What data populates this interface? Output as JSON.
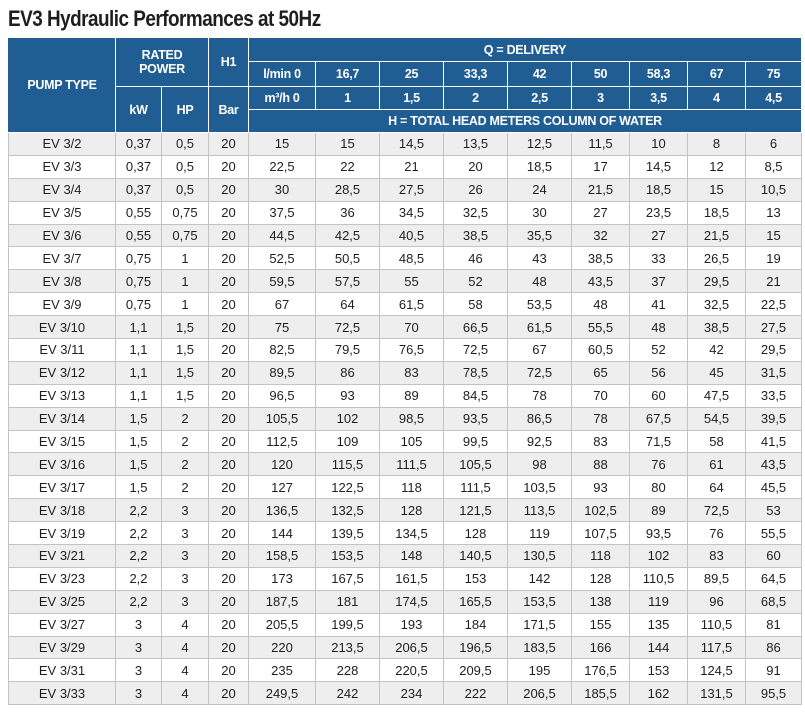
{
  "title": "EV3 Hydraulic Performances at 50Hz",
  "header": {
    "pump_type": "PUMP TYPE",
    "rated_power": "RATED POWER",
    "h1": "H1",
    "q_delivery": "Q = DELIVERY",
    "kw": "kW",
    "hp": "HP",
    "bar": "Bar",
    "lmin_label": "l/min 0",
    "m3h_label": "m³/h 0",
    "lmin_values": [
      "16,7",
      "25",
      "33,3",
      "42",
      "50",
      "58,3",
      "67",
      "75"
    ],
    "m3h_values": [
      "1",
      "1,5",
      "2",
      "2,5",
      "3",
      "3,5",
      "4",
      "4,5"
    ],
    "head_label": "H = TOTAL HEAD METERS COLUMN OF WATER"
  },
  "rows": [
    [
      "EV 3/2",
      "0,37",
      "0,5",
      "20",
      "15",
      "15",
      "14,5",
      "13,5",
      "12,5",
      "11,5",
      "10",
      "8",
      "6"
    ],
    [
      "EV 3/3",
      "0,37",
      "0,5",
      "20",
      "22,5",
      "22",
      "21",
      "20",
      "18,5",
      "17",
      "14,5",
      "12",
      "8,5"
    ],
    [
      "EV 3/4",
      "0,37",
      "0,5",
      "20",
      "30",
      "28,5",
      "27,5",
      "26",
      "24",
      "21,5",
      "18,5",
      "15",
      "10,5"
    ],
    [
      "EV 3/5",
      "0,55",
      "0,75",
      "20",
      "37,5",
      "36",
      "34,5",
      "32,5",
      "30",
      "27",
      "23,5",
      "18,5",
      "13"
    ],
    [
      "EV 3/6",
      "0,55",
      "0,75",
      "20",
      "44,5",
      "42,5",
      "40,5",
      "38,5",
      "35,5",
      "32",
      "27",
      "21,5",
      "15"
    ],
    [
      "EV 3/7",
      "0,75",
      "1",
      "20",
      "52,5",
      "50,5",
      "48,5",
      "46",
      "43",
      "38,5",
      "33",
      "26,5",
      "19"
    ],
    [
      "EV 3/8",
      "0,75",
      "1",
      "20",
      "59,5",
      "57,5",
      "55",
      "52",
      "48",
      "43,5",
      "37",
      "29,5",
      "21"
    ],
    [
      "EV 3/9",
      "0,75",
      "1",
      "20",
      "67",
      "64",
      "61,5",
      "58",
      "53,5",
      "48",
      "41",
      "32,5",
      "22,5"
    ],
    [
      "EV 3/10",
      "1,1",
      "1,5",
      "20",
      "75",
      "72,5",
      "70",
      "66,5",
      "61,5",
      "55,5",
      "48",
      "38,5",
      "27,5"
    ],
    [
      "EV 3/11",
      "1,1",
      "1,5",
      "20",
      "82,5",
      "79,5",
      "76,5",
      "72,5",
      "67",
      "60,5",
      "52",
      "42",
      "29,5"
    ],
    [
      "EV 3/12",
      "1,1",
      "1,5",
      "20",
      "89,5",
      "86",
      "83",
      "78,5",
      "72,5",
      "65",
      "56",
      "45",
      "31,5"
    ],
    [
      "EV 3/13",
      "1,1",
      "1,5",
      "20",
      "96,5",
      "93",
      "89",
      "84,5",
      "78",
      "70",
      "60",
      "47,5",
      "33,5"
    ],
    [
      "EV 3/14",
      "1,5",
      "2",
      "20",
      "105,5",
      "102",
      "98,5",
      "93,5",
      "86,5",
      "78",
      "67,5",
      "54,5",
      "39,5"
    ],
    [
      "EV 3/15",
      "1,5",
      "2",
      "20",
      "112,5",
      "109",
      "105",
      "99,5",
      "92,5",
      "83",
      "71,5",
      "58",
      "41,5"
    ],
    [
      "EV 3/16",
      "1,5",
      "2",
      "20",
      "120",
      "115,5",
      "111,5",
      "105,5",
      "98",
      "88",
      "76",
      "61",
      "43,5"
    ],
    [
      "EV 3/17",
      "1,5",
      "2",
      "20",
      "127",
      "122,5",
      "118",
      "111,5",
      "103,5",
      "93",
      "80",
      "64",
      "45,5"
    ],
    [
      "EV 3/18",
      "2,2",
      "3",
      "20",
      "136,5",
      "132,5",
      "128",
      "121,5",
      "113,5",
      "102,5",
      "89",
      "72,5",
      "53"
    ],
    [
      "EV 3/19",
      "2,2",
      "3",
      "20",
      "144",
      "139,5",
      "134,5",
      "128",
      "119",
      "107,5",
      "93,5",
      "76",
      "55,5"
    ],
    [
      "EV 3/21",
      "2,2",
      "3",
      "20",
      "158,5",
      "153,5",
      "148",
      "140,5",
      "130,5",
      "118",
      "102",
      "83",
      "60"
    ],
    [
      "EV 3/23",
      "2,2",
      "3",
      "20",
      "173",
      "167,5",
      "161,5",
      "153",
      "142",
      "128",
      "110,5",
      "89,5",
      "64,5"
    ],
    [
      "EV 3/25",
      "2,2",
      "3",
      "20",
      "187,5",
      "181",
      "174,5",
      "165,5",
      "153,5",
      "138",
      "119",
      "96",
      "68,5"
    ],
    [
      "EV 3/27",
      "3",
      "4",
      "20",
      "205,5",
      "199,5",
      "193",
      "184",
      "171,5",
      "155",
      "135",
      "110,5",
      "81"
    ],
    [
      "EV 3/29",
      "3",
      "4",
      "20",
      "220",
      "213,5",
      "206,5",
      "196,5",
      "183,5",
      "166",
      "144",
      "117,5",
      "86"
    ],
    [
      "EV 3/31",
      "3",
      "4",
      "20",
      "235",
      "228",
      "220,5",
      "209,5",
      "195",
      "176,5",
      "153",
      "124,5",
      "91"
    ],
    [
      "EV 3/33",
      "3",
      "4",
      "20",
      "249,5",
      "242",
      "234",
      "222",
      "206,5",
      "185,5",
      "162",
      "131,5",
      "95,5"
    ]
  ],
  "colors": {
    "header_bg": "#1f5d92",
    "header_text": "#ffffff",
    "row_alt_bg": "#eeeeee",
    "row_bg": "#ffffff",
    "grid": "#c3c3c3"
  }
}
